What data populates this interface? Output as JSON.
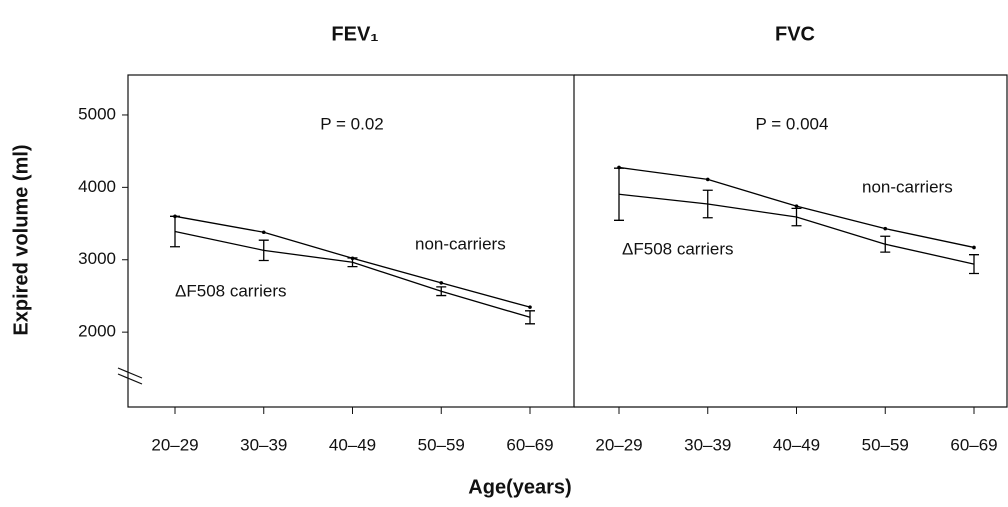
{
  "figure": {
    "ylabel": "Expired volume (ml)",
    "xlabel": "Age(years)"
  },
  "chart_data": [
    {
      "type": "line",
      "title": "FEV₁",
      "annotation": "P = 0.02",
      "categories": [
        "20–29",
        "30–39",
        "40–49",
        "50–59",
        "60–69"
      ],
      "ylim": [
        966,
        5552
      ],
      "yticks": [
        2000,
        3000,
        4000,
        5000
      ],
      "color": "#000000",
      "series": [
        {
          "name": "non-carriers",
          "values": [
            3600,
            3380,
            3020,
            2680,
            2345
          ]
        },
        {
          "name": "ΔF508 carriers",
          "values": [
            3390,
            3130,
            2965,
            2565,
            2205
          ],
          "errors": [
            210,
            140,
            60,
            60,
            90
          ]
        }
      ]
    },
    {
      "type": "line",
      "title": "FVC",
      "annotation": "P = 0.004",
      "categories": [
        "20–29",
        "30–39",
        "40–49",
        "50–59",
        "60–69"
      ],
      "ylim": [
        966,
        5552
      ],
      "color": "#000000",
      "series": [
        {
          "name": "non-carriers",
          "values": [
            4275,
            4110,
            3740,
            3430,
            3170
          ]
        },
        {
          "name": "ΔF508 carriers",
          "values": [
            3905,
            3770,
            3590,
            3215,
            2940
          ],
          "errors": [
            360,
            190,
            120,
            110,
            130
          ]
        }
      ]
    }
  ]
}
